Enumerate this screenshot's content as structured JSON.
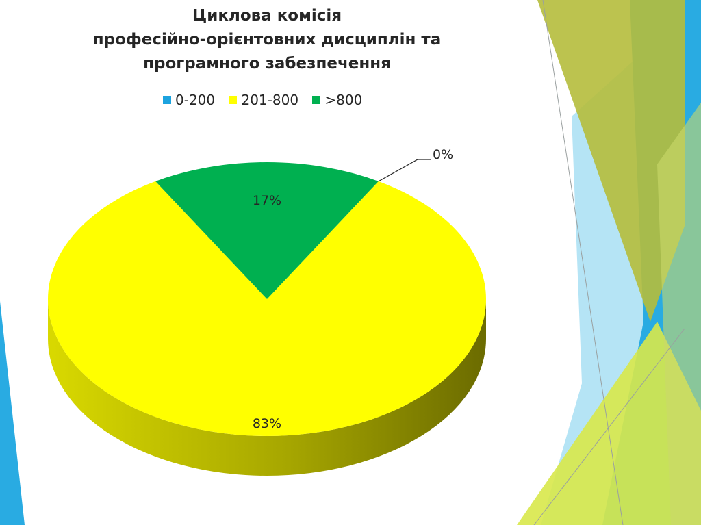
{
  "slide": {
    "colors": {
      "blue": "#29abe2",
      "lightblue": "#a8dff3",
      "olive": "#b5bd3c",
      "lime": "#d8e84a",
      "palegreen": "#c9d96a"
    }
  },
  "chart_data": {
    "type": "pie",
    "title_lines": [
      "Циклова комісія",
      "професійно-орієнтовних дисциплін та",
      "програмного забезпечення"
    ],
    "categories": [
      "0-200",
      "201-800",
      ">800"
    ],
    "values": [
      0,
      83,
      17
    ],
    "data_labels": [
      "0%",
      "83%",
      "17%"
    ],
    "colors": [
      "#1ca3df",
      "#ffff00",
      "#00b050"
    ],
    "side_colors": [
      "#0e6e96",
      "#8c8c00",
      "#00702f"
    ],
    "legend_position": "top",
    "style": "3d"
  }
}
